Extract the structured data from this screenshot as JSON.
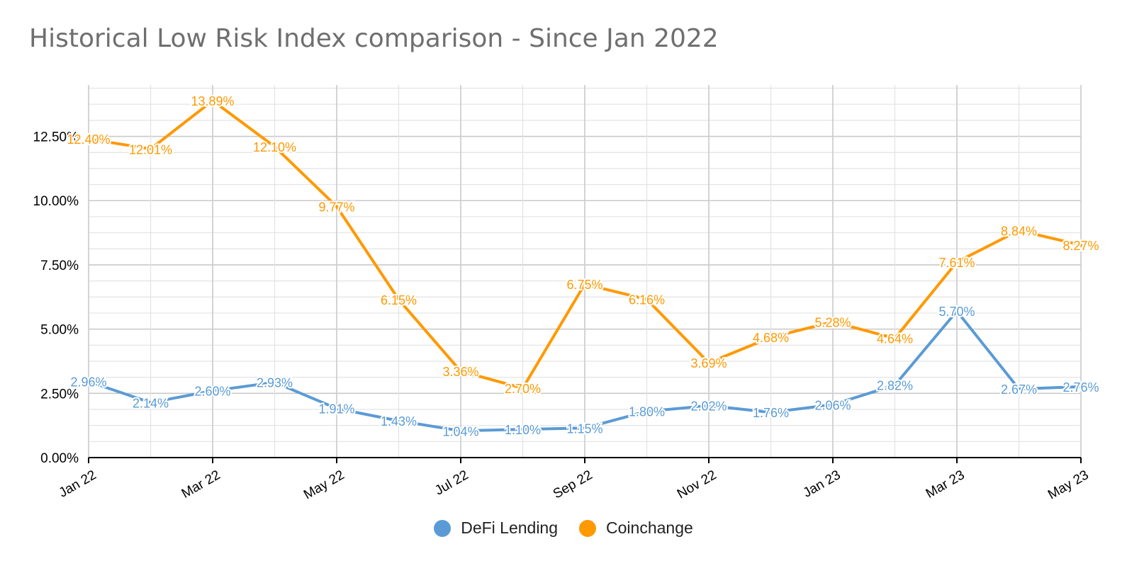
{
  "title": "Historical Low Risk Index comparison - Since Jan 2022",
  "chart_data": {
    "type": "line",
    "title": "Historical Low Risk Index comparison - Since Jan 2022",
    "xlabel": "",
    "ylabel": "",
    "x": [
      "Jan 22",
      "Feb 22",
      "Mar 22",
      "Apr 22",
      "May 22",
      "Jun 22",
      "Jul 22",
      "Aug 22",
      "Sep 22",
      "Oct 22",
      "Nov 22",
      "Dec 22",
      "Jan 23",
      "Feb 23",
      "Mar 23",
      "Apr 23",
      "May 23"
    ],
    "x_tick_labels": [
      "Jan 22",
      "Mar 22",
      "May 22",
      "Jul 22",
      "Sep 22",
      "Nov 22",
      "Jan 23",
      "Mar 23",
      "May 23"
    ],
    "y_tick_labels": [
      "0.00%",
      "2.50%",
      "5.00%",
      "7.50%",
      "10.00%",
      "12.50%"
    ],
    "ylim": [
      0,
      14.5
    ],
    "y_ticks": [
      0,
      2.5,
      5,
      7.5,
      10,
      12.5
    ],
    "grid": true,
    "legend_position": "bottom",
    "series": [
      {
        "name": "DeFi Lending",
        "color": "#5b9bd5",
        "values": [
          2.96,
          2.14,
          2.6,
          2.93,
          1.91,
          1.43,
          1.04,
          1.1,
          1.15,
          1.8,
          2.02,
          1.76,
          2.06,
          2.82,
          5.7,
          2.67,
          2.76
        ],
        "labels": [
          "2.96%",
          "2.14%",
          "2.60%",
          "2.93%",
          "1.91%",
          "1.43%",
          "1.04%",
          "1.10%",
          "1.15%",
          "1.80%",
          "2.02%",
          "1.76%",
          "2.06%",
          "2.82%",
          "5.70%",
          "2.67%",
          "2.76%"
        ]
      },
      {
        "name": "Coinchange",
        "color": "#ff9900",
        "values": [
          12.4,
          12.01,
          13.89,
          12.1,
          9.77,
          6.15,
          3.36,
          2.7,
          6.75,
          6.16,
          3.69,
          4.68,
          5.28,
          4.64,
          7.61,
          8.84,
          8.27
        ],
        "labels": [
          "12.40%",
          "12.01%",
          "13.89%",
          "12.10%",
          "9.77%",
          "6.15%",
          "3.36%",
          "2.70%",
          "6.75%",
          "6.16%",
          "3.69%",
          "4.68%",
          "5.28%",
          "4.64%",
          "7.61%",
          "8.84%",
          "8.27%"
        ]
      }
    ]
  }
}
